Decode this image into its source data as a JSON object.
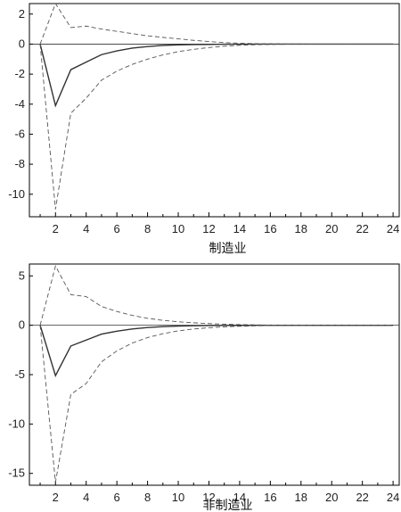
{
  "chart_data": [
    {
      "type": "line",
      "xlabel": "制造业",
      "ylim": [
        -11.5,
        2.7
      ],
      "xlim": [
        0.3,
        24.4
      ],
      "yticks": [
        2,
        0,
        -2,
        -4,
        -6,
        -8,
        -10
      ],
      "xticks": [
        2,
        4,
        6,
        8,
        10,
        12,
        14,
        16,
        18,
        20,
        22,
        24
      ],
      "x": [
        1,
        2,
        3,
        4,
        5,
        6,
        7,
        8,
        9,
        10,
        11,
        12,
        13,
        14,
        15,
        16,
        17,
        18,
        19,
        20,
        21,
        22,
        23,
        24
      ],
      "series": [
        {
          "style": "solid",
          "values": [
            0,
            -4.1,
            -1.7,
            -1.2,
            -0.7,
            -0.45,
            -0.27,
            -0.16,
            -0.09,
            -0.05,
            -0.03,
            -0.02,
            -0.01,
            -0.005,
            0,
            0,
            0,
            0,
            0,
            0,
            0,
            0,
            0,
            0
          ]
        },
        {
          "style": "dashed",
          "values": [
            0,
            2.7,
            1.1,
            1.2,
            1.0,
            0.85,
            0.7,
            0.55,
            0.45,
            0.35,
            0.25,
            0.17,
            0.1,
            0.06,
            0.03,
            0.02,
            0.01,
            0.005,
            0,
            0,
            0,
            0,
            0,
            0
          ]
        },
        {
          "style": "dashed",
          "values": [
            0,
            -11.0,
            -4.6,
            -3.6,
            -2.4,
            -1.8,
            -1.35,
            -1.0,
            -0.72,
            -0.5,
            -0.35,
            -0.23,
            -0.14,
            -0.08,
            -0.04,
            -0.02,
            -0.01,
            -0.005,
            0,
            0,
            0,
            0,
            0,
            0
          ]
        }
      ]
    },
    {
      "type": "line",
      "xlabel": "非制造业",
      "ylim": [
        -16.2,
        6.2
      ],
      "xlim": [
        0.3,
        24.4
      ],
      "yticks": [
        5,
        0,
        -5,
        -10,
        -15
      ],
      "xticks": [
        2,
        4,
        6,
        8,
        10,
        12,
        14,
        16,
        18,
        20,
        22,
        24
      ],
      "x": [
        1,
        2,
        3,
        4,
        5,
        6,
        7,
        8,
        9,
        10,
        11,
        12,
        13,
        14,
        15,
        16,
        17,
        18,
        19,
        20,
        21,
        22,
        23,
        24
      ],
      "series": [
        {
          "style": "solid",
          "values": [
            0,
            -5.1,
            -2.1,
            -1.5,
            -0.9,
            -0.6,
            -0.38,
            -0.23,
            -0.14,
            -0.08,
            -0.05,
            -0.03,
            -0.02,
            -0.01,
            0,
            0,
            0,
            0,
            0,
            0,
            0,
            0,
            0,
            0
          ]
        },
        {
          "style": "dashed",
          "values": [
            0,
            6.0,
            3.1,
            2.9,
            1.9,
            1.4,
            1.0,
            0.7,
            0.5,
            0.35,
            0.25,
            0.17,
            0.11,
            0.07,
            0.04,
            0.02,
            0.01,
            0.005,
            0,
            0,
            0,
            0,
            0,
            0
          ]
        },
        {
          "style": "dashed",
          "values": [
            0,
            -15.9,
            -7.0,
            -5.9,
            -3.7,
            -2.6,
            -1.8,
            -1.25,
            -0.85,
            -0.57,
            -0.38,
            -0.25,
            -0.16,
            -0.1,
            -0.06,
            -0.03,
            -0.015,
            -0.005,
            0,
            0,
            0,
            0,
            0,
            0
          ]
        }
      ]
    }
  ]
}
